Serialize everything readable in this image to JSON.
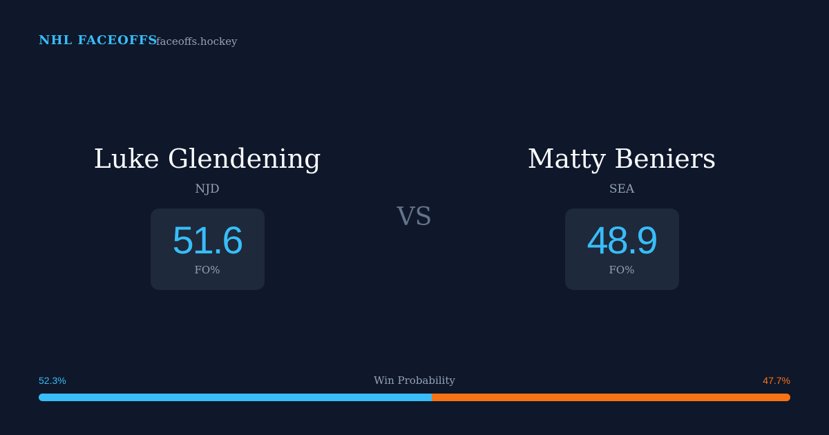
{
  "header": {
    "brand": "NHL FACEOFFS",
    "site": "faceoffs.hockey"
  },
  "players": [
    {
      "name": "Luke Glendening",
      "team": "NJD",
      "fo_value": 51.6,
      "fo_label": "FO%"
    },
    {
      "name": "Matty Beniers",
      "team": "SEA",
      "fo_value": 48.9,
      "fo_label": "FO%"
    }
  ],
  "vs": "VS",
  "win_probability": {
    "label": "Win Probability",
    "values": [
      52.3,
      47.7
    ],
    "value_labels": [
      "52.3%",
      "47.7%"
    ],
    "colors": [
      "#38bdf8",
      "#f97316"
    ]
  }
}
